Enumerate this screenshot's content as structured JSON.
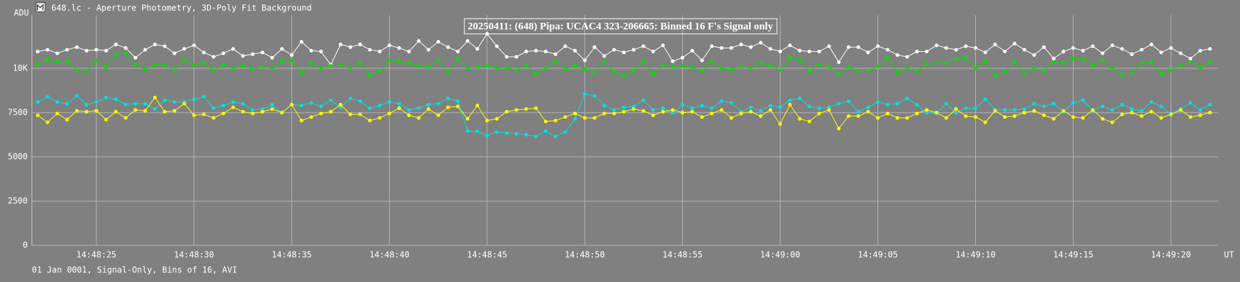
{
  "chart_data": {
    "type": "line",
    "window_title": "648.lc - Aperture Photometry, 3D-Poly Fit Background",
    "title": "20250411: (648) Pipa: UCAC4 323-206665: Binned 16 F's Signal only",
    "footer": "01 Jan 0001, Signal-Only, Bins of 16, AVI",
    "y_label": "ADU",
    "x_label": "UT",
    "xlim": [
      21.7,
      82.4
    ],
    "ylim": [
      0,
      13000
    ],
    "xticks": [
      {
        "value": 25,
        "label": "14:48:25"
      },
      {
        "value": 30,
        "label": "14:48:30"
      },
      {
        "value": 35,
        "label": "14:48:35"
      },
      {
        "value": 40,
        "label": "14:48:40"
      },
      {
        "value": 45,
        "label": "14:48:45"
      },
      {
        "value": 50,
        "label": "14:48:50"
      },
      {
        "value": 55,
        "label": "14:48:55"
      },
      {
        "value": 60,
        "label": "14:49:00"
      },
      {
        "value": 65,
        "label": "14:49:05"
      },
      {
        "value": 70,
        "label": "14:49:10"
      },
      {
        "value": 75,
        "label": "14:49:15"
      },
      {
        "value": 80,
        "label": "14:49:20"
      }
    ],
    "yticks": [
      0,
      2500,
      5000,
      7500,
      {
        "value": 10000,
        "label": "10K"
      }
    ],
    "grid": true,
    "x": [
      22,
      22.5,
      23,
      23.5,
      24,
      24.5,
      25,
      25.5,
      26,
      26.5,
      27,
      27.5,
      28,
      28.5,
      29,
      29.5,
      30,
      30.5,
      31,
      31.5,
      32,
      32.5,
      33,
      33.5,
      34,
      34.5,
      35,
      35.5,
      36,
      36.5,
      37,
      37.5,
      38,
      38.5,
      39,
      39.5,
      40,
      40.5,
      41,
      41.5,
      42,
      42.5,
      43,
      43.5,
      44,
      44.5,
      45,
      45.5,
      46,
      46.5,
      47,
      47.5,
      48,
      48.5,
      49,
      49.5,
      50,
      50.5,
      51,
      51.5,
      52,
      52.5,
      53,
      53.5,
      54,
      54.5,
      55,
      55.5,
      56,
      56.5,
      57,
      57.5,
      58,
      58.5,
      59,
      59.5,
      60,
      60.5,
      61,
      61.5,
      62,
      62.5,
      63,
      63.5,
      64,
      64.5,
      65,
      65.5,
      66,
      66.5,
      67,
      67.5,
      68,
      68.5,
      69,
      69.5,
      70,
      70.5,
      71,
      71.5,
      72,
      72.5,
      73,
      73.5,
      74,
      74.5,
      75,
      75.5,
      76,
      76.5,
      77,
      77.5,
      78,
      78.5,
      79,
      79.5,
      80,
      80.5,
      81,
      81.5,
      82
    ],
    "series": [
      {
        "color": "#ffffff",
        "values": [
          10950,
          11050,
          10850,
          11050,
          11200,
          11000,
          11050,
          11000,
          11350,
          11150,
          10600,
          11050,
          11350,
          11250,
          10850,
          11100,
          11300,
          10900,
          10650,
          10850,
          11100,
          10700,
          10800,
          10900,
          10600,
          11100,
          10750,
          11500,
          11000,
          10950,
          10200,
          11350,
          11200,
          11350,
          11050,
          10950,
          11300,
          11150,
          10950,
          11550,
          11050,
          11500,
          11200,
          10950,
          11550,
          11100,
          11950,
          11250,
          10650,
          10650,
          10950,
          11000,
          10950,
          10800,
          11250,
          11000,
          10450,
          11200,
          10700,
          11050,
          10900,
          11050,
          11250,
          10950,
          11300,
          10400,
          10600,
          11000,
          10450,
          11250,
          11150,
          11150,
          11350,
          11200,
          11450,
          11100,
          10950,
          11300,
          11000,
          10950,
          10950,
          11250,
          10350,
          11200,
          11200,
          10900,
          11250,
          11050,
          10750,
          10650,
          10950,
          10950,
          11300,
          11150,
          11050,
          11250,
          11150,
          10900,
          11350,
          10950,
          11400,
          11050,
          10750,
          11200,
          10550,
          10950,
          11150,
          11000,
          11250,
          10850,
          11300,
          11100,
          10800,
          11050,
          11350,
          10900,
          11150,
          10850,
          10550,
          11000,
          11100
        ]
      },
      {
        "color": "#00e000",
        "values": [
          10250,
          10500,
          10400,
          10400,
          9900,
          9800,
          10450,
          10050,
          10800,
          10850,
          10200,
          9950,
          10200,
          10200,
          9900,
          10500,
          10200,
          10300,
          9900,
          10200,
          10000,
          10150,
          9950,
          10100,
          10000,
          10400,
          10450,
          9750,
          10300,
          10000,
          10150,
          10200,
          10000,
          10300,
          9600,
          9850,
          10450,
          10400,
          10300,
          10150,
          10100,
          10450,
          9750,
          10550,
          10000,
          10100,
          10150,
          10000,
          10050,
          9900,
          10200,
          9700,
          10000,
          10400,
          9950,
          10150,
          9950,
          9750,
          10400,
          9800,
          9550,
          9850,
          10400,
          9700,
          10150,
          10100,
          10150,
          10050,
          9850,
          10400,
          10000,
          9950,
          10100,
          10000,
          10300,
          10150,
          9900,
          10600,
          10500,
          9850,
          10200,
          10100,
          9650,
          10100,
          9800,
          9850,
          10100,
          10600,
          9800,
          10000,
          9850,
          10250,
          10300,
          10300,
          10550,
          10600,
          10000,
          10400,
          9600,
          9800,
          10400,
          9750,
          10000,
          9850,
          10350,
          10300,
          10550,
          10550,
          10150,
          10450,
          10000,
          9650,
          9750,
          10300,
          10350,
          9700,
          9900,
          10200,
          10350,
          10050,
          10350
        ]
      },
      {
        "color": "#00e0e0",
        "values": [
          8100,
          8400,
          8100,
          8000,
          8450,
          7950,
          8100,
          8350,
          8250,
          7950,
          8000,
          8000,
          7700,
          8200,
          8100,
          8100,
          8250,
          8400,
          7750,
          7900,
          8100,
          8000,
          7650,
          7700,
          7950,
          7500,
          7950,
          7900,
          8050,
          7850,
          8200,
          7800,
          8300,
          8150,
          7750,
          7900,
          8100,
          8000,
          7650,
          7750,
          7950,
          8000,
          8300,
          8150,
          6450,
          6450,
          6200,
          6400,
          6350,
          6300,
          6250,
          6150,
          6450,
          6150,
          6400,
          7150,
          8550,
          8450,
          7900,
          7650,
          7800,
          7850,
          8200,
          7650,
          7750,
          7500,
          7950,
          7750,
          7900,
          7750,
          8150,
          8050,
          7550,
          7800,
          7600,
          7900,
          7800,
          8200,
          8300,
          7850,
          7750,
          7800,
          8000,
          8150,
          7550,
          7800,
          8100,
          7950,
          8000,
          8300,
          7950,
          7500,
          7450,
          8000,
          7500,
          7750,
          7750,
          8250,
          7650,
          7650,
          7650,
          7700,
          8000,
          7850,
          8000,
          7550,
          8050,
          8200,
          7600,
          7850,
          7650,
          7950,
          7700,
          7600,
          8100,
          7850,
          7400,
          7700,
          8050,
          7650,
          7950
        ]
      },
      {
        "color": "#ffff00",
        "values": [
          7350,
          6950,
          7450,
          7100,
          7600,
          7550,
          7600,
          7100,
          7550,
          7200,
          7650,
          7600,
          8350,
          7550,
          7600,
          8000,
          7350,
          7400,
          7200,
          7450,
          7800,
          7550,
          7450,
          7550,
          7700,
          7500,
          7950,
          7050,
          7250,
          7450,
          7550,
          7950,
          7400,
          7400,
          7050,
          7200,
          7450,
          7750,
          7350,
          7200,
          7700,
          7350,
          7800,
          7850,
          7150,
          7900,
          7050,
          7150,
          7550,
          7650,
          7700,
          7750,
          7000,
          7050,
          7250,
          7450,
          7200,
          7200,
          7450,
          7450,
          7550,
          7700,
          7600,
          7350,
          7550,
          7650,
          7500,
          7550,
          7250,
          7450,
          7650,
          7200,
          7450,
          7550,
          7300,
          7650,
          6850,
          7950,
          7150,
          7000,
          7450,
          7650,
          6600,
          7300,
          7300,
          7550,
          7200,
          7450,
          7200,
          7200,
          7450,
          7650,
          7500,
          7200,
          7700,
          7300,
          7250,
          6950,
          7600,
          7250,
          7300,
          7500,
          7600,
          7350,
          7150,
          7600,
          7250,
          7200,
          7650,
          7150,
          6950,
          7400,
          7500,
          7300,
          7550,
          7200,
          7400,
          7650,
          7250,
          7350,
          7500
        ]
      }
    ]
  }
}
